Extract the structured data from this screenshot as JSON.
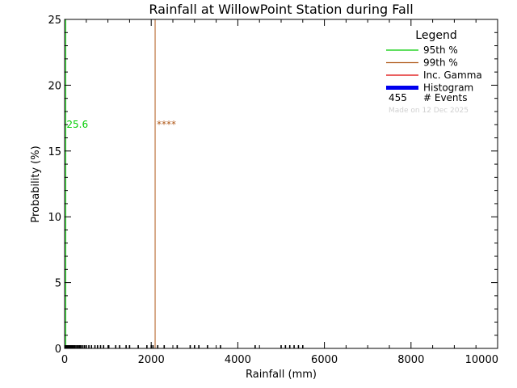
{
  "chart_data": {
    "type": "line",
    "title": "Rainfall at WillowPoint Station during Fall",
    "xlabel": "Rainfall (mm)",
    "ylabel": "Probability (%)",
    "xlim": [
      0,
      10000
    ],
    "ylim": [
      0,
      25
    ],
    "xticks": [
      0,
      2000,
      4000,
      6000,
      8000,
      10000
    ],
    "yticks": [
      0,
      5,
      10,
      15,
      20,
      25
    ],
    "grid": false,
    "legend": {
      "title": "Legend",
      "position": "top-right",
      "entries": [
        {
          "label": "95th %",
          "color": "#00cc00"
        },
        {
          "label": "99th %",
          "color": "#b05a1a"
        },
        {
          "label": "Inc. Gamma",
          "color": "#dd0000"
        },
        {
          "label": "Histogram",
          "color": "#0000ee"
        }
      ],
      "events_count": "455",
      "events_label": "# Events",
      "made_on": "Made on 12 Dec 2025"
    },
    "percentile_95": {
      "x": 25.6,
      "label": "25.6",
      "color": "#00cc00"
    },
    "percentile_99": {
      "x": 2090,
      "label": "****",
      "color": "#b05a1a"
    },
    "gamma_curve": {
      "color": "#dd0000",
      "x": [
        0,
        10000
      ],
      "y": [
        0,
        0
      ]
    },
    "histogram": {
      "color": "#0000ee",
      "rug_color": "#000000",
      "values": [
        0
      ],
      "events_x": [
        10,
        20,
        30,
        40,
        50,
        60,
        70,
        80,
        100,
        120,
        140,
        160,
        180,
        200,
        230,
        260,
        290,
        320,
        350,
        380,
        420,
        460,
        500,
        560,
        620,
        700,
        760,
        830,
        900,
        1020,
        1180,
        1270,
        1420,
        1500,
        1700,
        1900,
        2000,
        2040,
        2150,
        2300,
        2600,
        2900,
        3000,
        3100,
        3300,
        3600,
        4400,
        5000,
        5100,
        5200,
        5300,
        5400,
        5500
      ]
    }
  }
}
